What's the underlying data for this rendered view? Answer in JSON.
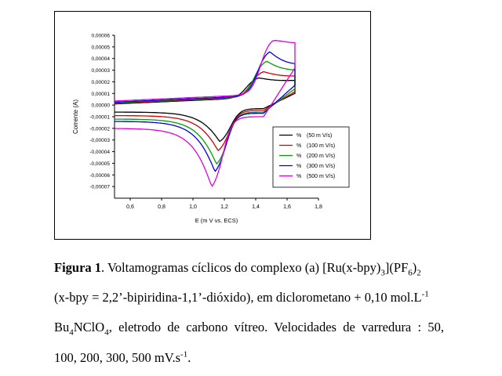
{
  "chart_data": {
    "type": "line",
    "xlabel": "E (m V vs. ECS)",
    "ylabel": "Corrente (A)",
    "xlim": [
      0.5,
      1.8
    ],
    "ylim": [
      -8e-05,
      6e-05
    ],
    "xticks": [
      "0,6",
      "0,8",
      "1,0",
      "1,2",
      "1,4",
      "1,6",
      "1,8"
    ],
    "xtick_values": [
      0.6,
      0.8,
      1.0,
      1.2,
      1.4,
      1.6,
      1.8
    ],
    "yticks": [
      "0,00006",
      "0,00005",
      "0,00004",
      "0,00003",
      "0,00002",
      "0,00001",
      "0,00000",
      "-0,00001",
      "-0,00002",
      "-0,00003",
      "-0,00004",
      "-0,00005",
      "-0,00006",
      "-0,00007"
    ],
    "ytick_values": [
      6e-05,
      5e-05,
      4e-05,
      3e-05,
      2e-05,
      1e-05,
      0,
      -1e-05,
      -2e-05,
      -3e-05,
      -4e-05,
      -5e-05,
      -6e-05,
      -7e-05
    ],
    "legend_position": "lower-right",
    "grid": false,
    "series": [
      {
        "name": "(50 m V/s)",
        "color": "#000000",
        "x_start": 0.5,
        "x_switch": 1.65,
        "anodic_peak": [
          1.42,
          1.8e-05
        ],
        "cathodic_peak": [
          1.17,
          -3.1e-05
        ],
        "start_current_fwd": 1e-06,
        "start_current_rev": -3e-06,
        "end_current": 1.3e-05
      },
      {
        "name": "(100 m V/s)",
        "color": "#d40000",
        "x_start": 0.5,
        "x_switch": 1.65,
        "anodic_peak": [
          1.45,
          2.3e-05
        ],
        "cathodic_peak": [
          1.16,
          -3.8e-05
        ],
        "start_current_fwd": 1.5e-06,
        "start_current_rev": -4.5e-06,
        "end_current": 1.6e-05
      },
      {
        "name": "(200 m V/s)",
        "color": "#00a000",
        "x_start": 0.5,
        "x_switch": 1.65,
        "anodic_peak": [
          1.47,
          3.2e-05
        ],
        "cathodic_peak": [
          1.15,
          -4.9e-05
        ],
        "start_current_fwd": 2e-06,
        "start_current_rev": -6e-06,
        "end_current": 2e-05
      },
      {
        "name": "(300 m V/s)",
        "color": "#0000e0",
        "x_start": 0.5,
        "x_switch": 1.65,
        "anodic_peak": [
          1.49,
          4e-05
        ],
        "cathodic_peak": [
          1.14,
          -5.5e-05
        ],
        "start_current_fwd": 2.5e-06,
        "start_current_rev": -7e-06,
        "end_current": 2.4e-05
      },
      {
        "name": "(500 m V/s)",
        "color": "#e000e0",
        "x_start": 0.5,
        "x_switch": 1.65,
        "anodic_peak": [
          1.51,
          4.9e-05
        ],
        "cathodic_peak": [
          1.12,
          -6.6e-05
        ],
        "start_current_fwd": 3.5e-06,
        "start_current_rev": -1e-05,
        "end_current": 4.2e-05
      }
    ],
    "legend_symbol": "%"
  },
  "caption": {
    "label": "Figura 1",
    "line1_a": ". Voltamogramas cíclicos do complexo (a) [Ru(x-bpy)",
    "sub_3": "3",
    "line1_b": "](PF",
    "sub_6": "6",
    "line1_c": ")",
    "sub_2": "2",
    "line2_a": "(x-bpy = 2,2’-bipiridina-1,1’-dióxido), em diclorometano + 0,10 mol.L",
    "sup_m1": "-1",
    "line3_a": "Bu",
    "sub_4": "4",
    "line3_b": "NClO",
    "sub_4b": "4",
    "line3_c": ", eletrodo de carbono vítreo. Velocidades de varredura : 50,",
    "line4_a": "100, 200, 300, 500 mV.s",
    "sup_m1b": "-1",
    "line4_b": "."
  }
}
